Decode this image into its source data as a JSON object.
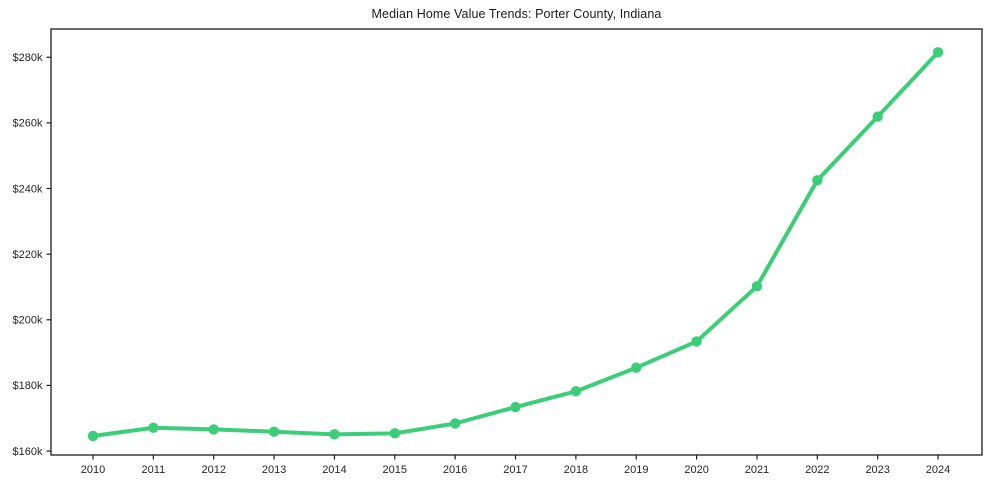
{
  "chart_data": {
    "type": "line",
    "title": "Median Home Value Trends: Porter County, Indiana",
    "xlabel": "",
    "ylabel": "",
    "x": [
      2010,
      2011,
      2012,
      2013,
      2014,
      2015,
      2016,
      2017,
      2018,
      2019,
      2020,
      2021,
      2022,
      2023,
      2024
    ],
    "series": [
      {
        "name": "Median Home Value",
        "values": [
          164600,
          167100,
          166600,
          165900,
          165100,
          165400,
          168400,
          173400,
          178200,
          185400,
          193400,
          210200,
          242500,
          261900,
          281500
        ]
      }
    ],
    "y_ticks": [
      {
        "value": 160000,
        "label": "$160k"
      },
      {
        "value": 180000,
        "label": "$180k"
      },
      {
        "value": 200000,
        "label": "$200k"
      },
      {
        "value": 220000,
        "label": "$220k"
      },
      {
        "value": 240000,
        "label": "$240k"
      },
      {
        "value": 260000,
        "label": "$260k"
      },
      {
        "value": 280000,
        "label": "$280k"
      }
    ],
    "x_tick_labels": [
      "2010",
      "2011",
      "2012",
      "2013",
      "2014",
      "2015",
      "2016",
      "2017",
      "2018",
      "2019",
      "2020",
      "2021",
      "2022",
      "2023",
      "2024"
    ],
    "ylim": [
      158800,
      288600
    ],
    "grid": false,
    "legend": "none",
    "marker": "circle",
    "colors": {
      "line": "#3ccd78",
      "axis": "#1c1c1c",
      "tick_text": "#262626",
      "title_text": "#1a1a1a",
      "background": "#ffffff"
    }
  }
}
